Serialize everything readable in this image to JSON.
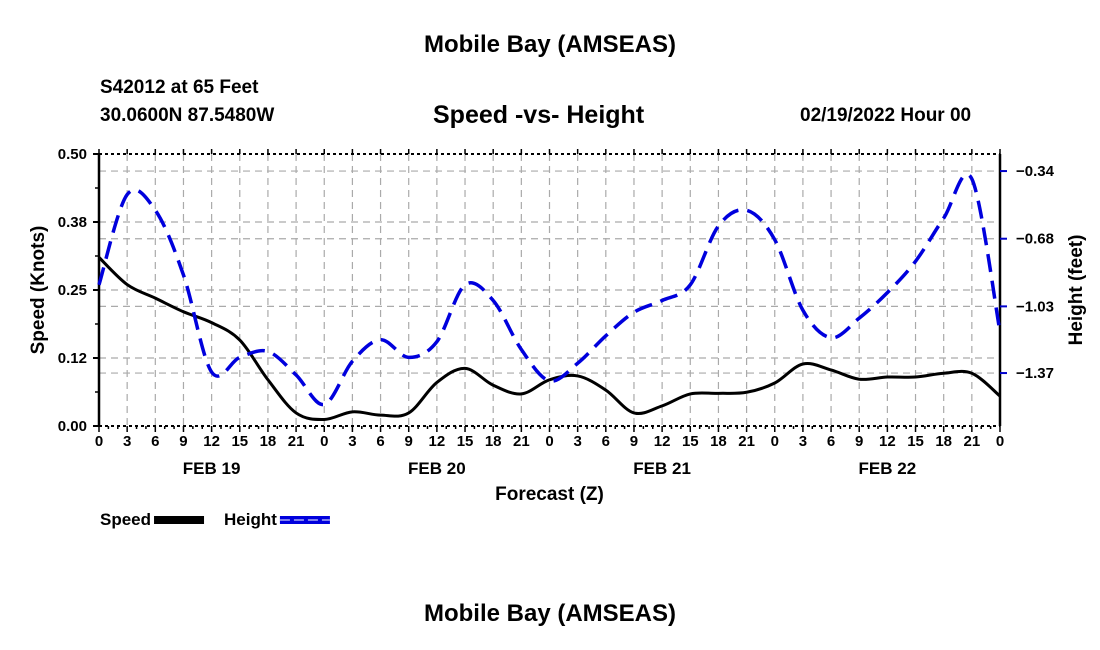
{
  "header": {
    "title": "Mobile Bay (AMSEAS)",
    "station": "S42012 at 65 Feet",
    "coords": "30.0600N  87.5480W",
    "date": "02/19/2022 Hour 00",
    "footer_title": "Mobile Bay (AMSEAS)"
  },
  "chart_data": {
    "type": "line",
    "title": "Speed -vs- Height",
    "xlabel": "Forecast (Z)",
    "ylabel": "Speed (Knots)",
    "y2label": "Height (feet)",
    "xlim": [
      0,
      96
    ],
    "ylim": [
      0,
      0.5
    ],
    "y2lim": [
      -1.64,
      -0.253
    ],
    "yticks": [
      "0.00",
      "0.12",
      "0.25",
      "0.38",
      "0.50"
    ],
    "ytick_values": [
      0,
      0.125,
      0.25,
      0.375,
      0.5
    ],
    "y2ticks": [
      "-0.34",
      "-0.68",
      "-1.03",
      "-1.37"
    ],
    "y2tick_values": [
      -0.34,
      -0.685,
      -1.03,
      -1.37
    ],
    "xtick_labels": [
      "0",
      "3",
      "6",
      "9",
      "12",
      "15",
      "18",
      "21",
      "0",
      "3",
      "6",
      "9",
      "12",
      "15",
      "18",
      "21",
      "0",
      "3",
      "6",
      "9",
      "12",
      "15",
      "18",
      "21",
      "0",
      "3",
      "6",
      "9",
      "12",
      "15",
      "18",
      "21",
      "0"
    ],
    "day_labels": [
      "FEB 19",
      "FEB 20",
      "FEB 21",
      "FEB 22"
    ],
    "grid": true,
    "legend": "bottom-left",
    "x": [
      0,
      3,
      6,
      9,
      12,
      15,
      18,
      21,
      24,
      27,
      30,
      33,
      36,
      39,
      42,
      45,
      48,
      51,
      54,
      57,
      60,
      63,
      66,
      69,
      72,
      75,
      78,
      81,
      84,
      87,
      90,
      93,
      96
    ],
    "series": [
      {
        "name": "Speed",
        "axis": "left",
        "color": "#000000",
        "style": "solid",
        "values": [
          0.31,
          0.26,
          0.235,
          0.21,
          0.19,
          0.158,
          0.085,
          0.024,
          0.012,
          0.026,
          0.02,
          0.024,
          0.08,
          0.106,
          0.075,
          0.059,
          0.085,
          0.092,
          0.066,
          0.024,
          0.037,
          0.059,
          0.06,
          0.062,
          0.079,
          0.114,
          0.103,
          0.086,
          0.09,
          0.09,
          0.097,
          0.097,
          0.055
        ]
      },
      {
        "name": "Height",
        "axis": "right",
        "color": "#0000dd",
        "style": "dashed",
        "values": [
          -0.92,
          -0.46,
          -0.54,
          -0.87,
          -1.365,
          -1.29,
          -1.26,
          -1.38,
          -1.53,
          -1.31,
          -1.2,
          -1.29,
          -1.21,
          -0.92,
          -1.0,
          -1.25,
          -1.41,
          -1.32,
          -1.18,
          -1.06,
          -1.0,
          -0.92,
          -0.62,
          -0.54,
          -0.69,
          -1.05,
          -1.19,
          -1.09,
          -0.96,
          -0.8,
          -0.58,
          -0.38,
          -1.16
        ]
      }
    ]
  }
}
